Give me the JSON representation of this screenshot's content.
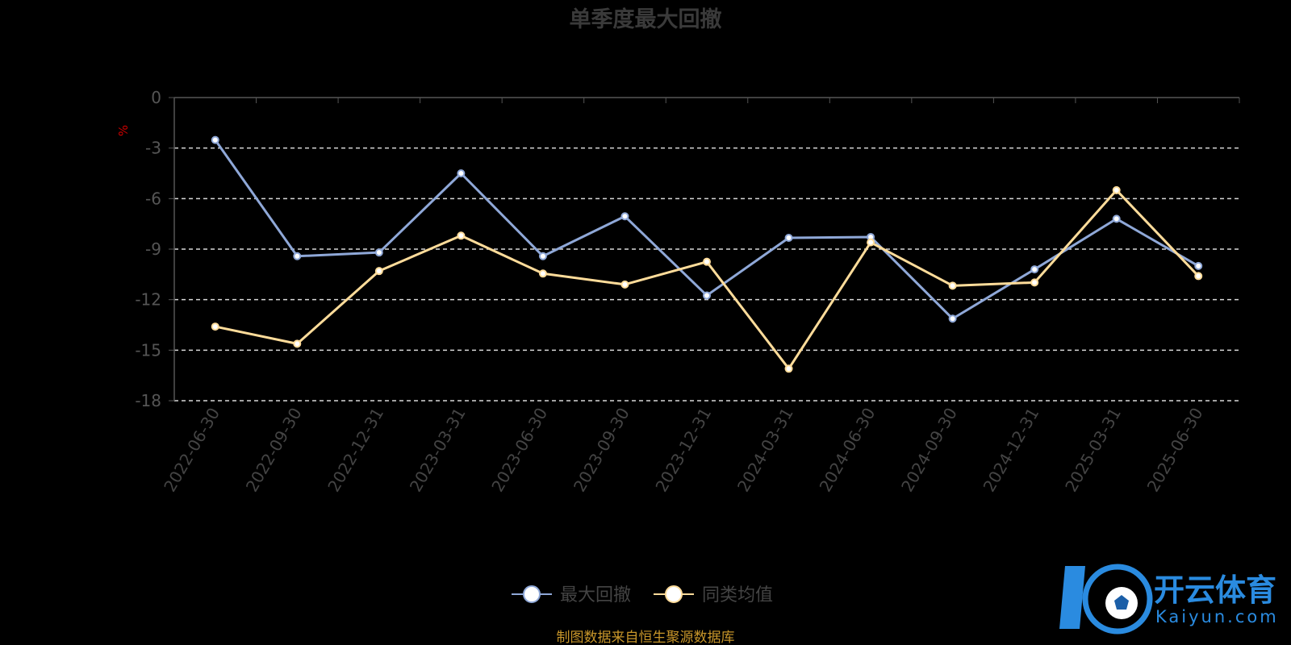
{
  "chart_data": {
    "type": "line",
    "title": "单季度最大回撤",
    "ylabel": "%",
    "ylim": [
      -18,
      0
    ],
    "y_ticks": [
      "0",
      "-3",
      "-6",
      "-9",
      "-12",
      "-15",
      "-18"
    ],
    "y_tick_values": [
      0,
      -3,
      -6,
      -9,
      -12,
      -15,
      -18
    ],
    "categories": [
      "2022-06-30",
      "2022-09-30",
      "2022-12-31",
      "2023-03-31",
      "2023-06-30",
      "2023-09-30",
      "2023-12-31",
      "2024-03-31",
      "2024-06-30",
      "2024-09-30",
      "2024-12-31",
      "2025-03-31",
      "2025-06-30"
    ],
    "grid": "dashed horizontal",
    "legend_position": "bottom",
    "series": [
      {
        "name": "最大回撤",
        "color": "#8fa8d8",
        "values": [
          -2.52,
          -9.42,
          -9.2,
          -4.5,
          -9.42,
          -7.05,
          -11.75,
          -8.33,
          -8.28,
          -13.13,
          -10.2,
          -7.2,
          -10.0
        ]
      },
      {
        "name": "同类均值",
        "color": "#ffdc9a",
        "values": [
          -13.6,
          -14.62,
          -10.3,
          -8.2,
          -10.45,
          -11.1,
          -9.75,
          -16.1,
          -8.6,
          -11.17,
          -10.98,
          -5.5,
          -10.6
        ]
      }
    ]
  },
  "footer": {
    "source_text": "制图数据来自恒生聚源数据库"
  },
  "watermark": {
    "cn": "开云体育",
    "en": "Kaiyun.com",
    "color": "#2a8be0"
  }
}
